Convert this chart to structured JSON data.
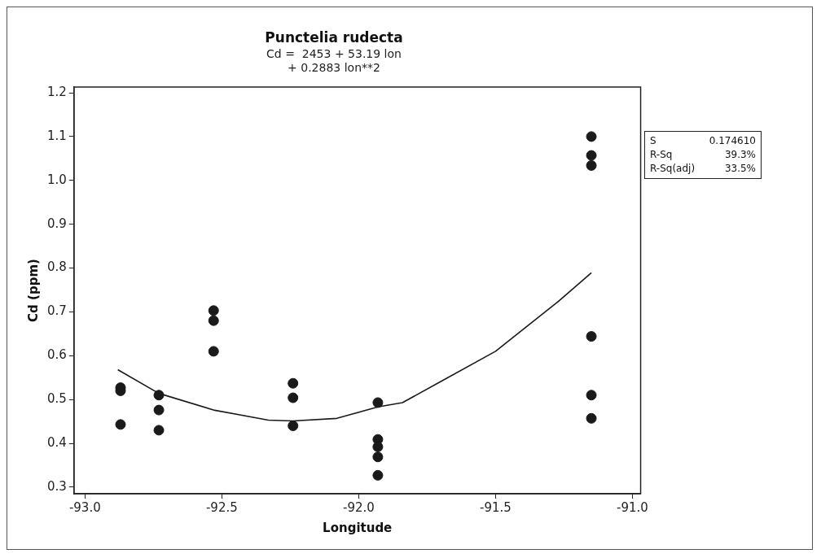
{
  "chart_data": {
    "type": "scatter",
    "title": "Punctelia rudecta",
    "subtitle": "Cd =  2453 + 53.19 lon\n+ 0.2883 lon**2",
    "xlabel": "Longitude",
    "ylabel": "Cd (ppm)",
    "xlim": [
      -93.04,
      -90.97
    ],
    "ylim": [
      0.285,
      1.213
    ],
    "xticks": [
      {
        "value": -93,
        "label": "-93.0"
      },
      {
        "value": -92.5,
        "label": "-92.5"
      },
      {
        "value": -92,
        "label": "-92.0"
      },
      {
        "value": -91.5,
        "label": "-91.5"
      },
      {
        "value": -91,
        "label": "-91.0"
      }
    ],
    "yticks": [
      0.3,
      0.4,
      0.5,
      0.6,
      0.7,
      0.8,
      0.9,
      {
        "value": 1,
        "label": "1.0"
      },
      1.1,
      1.2
    ],
    "grid": false,
    "legend": false,
    "marker": "circle",
    "annotations": [
      "S 0.174610",
      "R-Sq 39.3%",
      "R-Sq(adj) 33.5%"
    ],
    "series": [
      {
        "color": "#1a1a1a",
        "x": [
          -92.87,
          -92.87,
          -92.87,
          -92.73,
          -92.73,
          -92.73,
          -92.53,
          -92.53,
          -92.53,
          -92.24,
          -92.24,
          -92.24,
          -91.93,
          -91.93,
          -91.93,
          -91.93,
          -91.93,
          -91.15,
          -91.15,
          -91.15,
          -91.15,
          -91.15,
          -91.15
        ],
        "values": [
          0.527,
          0.52,
          0.443,
          0.51,
          0.476,
          0.43,
          0.703,
          0.68,
          0.61,
          0.537,
          0.504,
          0.44,
          0.493,
          0.409,
          0.392,
          0.369,
          0.327,
          1.1,
          1.057,
          1.034,
          0.644,
          0.51,
          0.457
        ]
      },
      {
        "type": "line",
        "color": "#1a1a1a",
        "line_style": "solid",
        "marker": "none",
        "x": [
          -92.88,
          -92.73,
          -92.53,
          -92.33,
          -92.24,
          -92.08,
          -91.93,
          -91.84,
          -91.7,
          -91.5,
          -91.27,
          -91.15
        ],
        "values": [
          0.568,
          0.514,
          0.476,
          0.453,
          0.451,
          0.457,
          0.483,
          0.493,
          0.541,
          0.61,
          0.724,
          0.789
        ]
      }
    ]
  }
}
